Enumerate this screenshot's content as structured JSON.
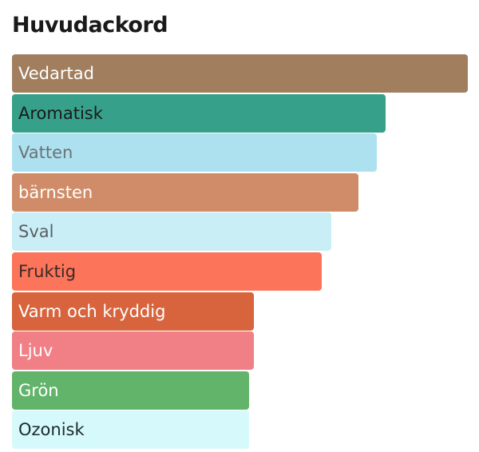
{
  "title": "Huvudackord",
  "chart_data": {
    "type": "bar",
    "orientation": "horizontal",
    "title": "Huvudackord",
    "xlabel": "",
    "ylabel": "",
    "xlim": [
      0,
      100
    ],
    "grid": false,
    "categories": [
      "Vedartad",
      "Aromatisk",
      "Vatten",
      "bärnsten",
      "Sval",
      "Fruktig",
      "Varm och kryddig",
      "Ljuv",
      "Grön",
      "Ozonisk"
    ],
    "values": [
      100,
      82,
      80,
      76,
      70,
      68,
      53,
      53,
      52,
      52
    ],
    "colors": [
      "#a17f5e",
      "#37a08a",
      "#ade1f0",
      "#d08c68",
      "#c9eef6",
      "#fc7459",
      "#d8643d",
      "#f07f86",
      "#62b46a",
      "#d6fafb"
    ],
    "label_colors": [
      "#ffffff",
      "#1a1a1a",
      "#6b7278",
      "#ffffff",
      "#5a6066",
      "#3a2a28",
      "#ffffff",
      "#ffffff",
      "#ffffff",
      "#1f2a2c"
    ]
  }
}
